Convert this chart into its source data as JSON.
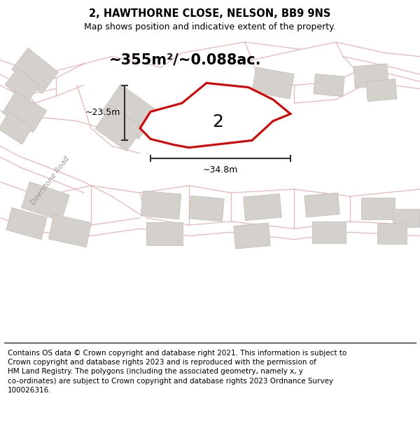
{
  "title": "2, HAWTHORNE CLOSE, NELSON, BB9 9NS",
  "subtitle": "Map shows position and indicative extent of the property.",
  "area_label": "~355m²/~0.088ac.",
  "plot_number": "2",
  "width_label": "~34.8m",
  "height_label": "~23.5m",
  "footer": "Contains OS data © Crown copyright and database right 2021. This information is subject to Crown copyright and database rights 2023 and is reproduced with the permission of HM Land Registry. The polygons (including the associated geometry, namely x, y co-ordinates) are subject to Crown copyright and database rights 2023 Ordnance Survey 100026316.",
  "map_bg": "#f2f0ec",
  "road_stroke": "#e8aaaa",
  "building_fill": "#d4d1cc",
  "building_edge": "#c0bdb8",
  "plot_stroke": "#dd0000",
  "dim_color": "#333333",
  "road_label_color": "#999999",
  "title_fontsize": 10.5,
  "subtitle_fontsize": 9,
  "footer_fontsize": 7.5,
  "area_fontsize": 15,
  "plot_num_fontsize": 18,
  "dim_fontsize": 9
}
